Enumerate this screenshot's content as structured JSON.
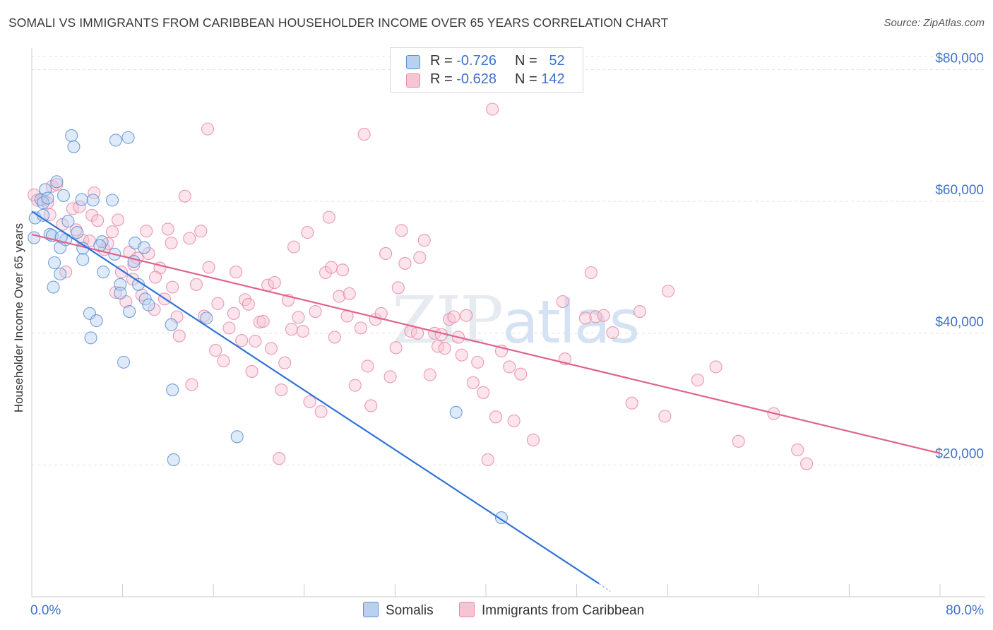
{
  "title": "SOMALI VS IMMIGRANTS FROM CARIBBEAN HOUSEHOLDER INCOME OVER 65 YEARS CORRELATION CHART",
  "source": "Source: ZipAtlas.com",
  "watermark": {
    "zip": "ZIP",
    "atlas": "atlas"
  },
  "legend_top": {
    "rows": [
      {
        "r_label": "R =",
        "r_value": "-0.726",
        "n_label": "N =",
        "n_value": "52"
      },
      {
        "r_label": "R =",
        "r_value": "-0.628",
        "n_label": "N =",
        "n_value": "142"
      }
    ]
  },
  "chart_data": {
    "type": "scatter",
    "title": "SOMALI VS IMMIGRANTS FROM CARIBBEAN HOUSEHOLDER INCOME OVER 65 YEARS CORRELATION CHART",
    "xlabel": "",
    "ylabel": "Householder Income Over 65 years",
    "xlim": [
      0,
      80
    ],
    "ylim": [
      0,
      82000
    ],
    "x_tick_labels": [
      "0.0%",
      "80.0%"
    ],
    "y_ticks": [
      20000,
      40000,
      60000,
      80000
    ],
    "y_tick_labels": [
      "$20,000",
      "$40,000",
      "$60,000",
      "$80,000"
    ],
    "grid": true,
    "series": [
      {
        "name": "Somalis",
        "color": "#5b8fd6",
        "fill": "#b9d0ef",
        "trendline": {
          "x0": 0,
          "y0": 58500,
          "x1": 50,
          "y1": 2000,
          "dashed_to": [
            51,
            800
          ]
        },
        "points": [
          [
            0.2,
            54500
          ],
          [
            0.3,
            57500
          ],
          [
            0.8,
            60300
          ],
          [
            1.0,
            59800
          ],
          [
            1.2,
            61800
          ],
          [
            1.0,
            57900
          ],
          [
            1.6,
            55000
          ],
          [
            1.8,
            54800
          ],
          [
            2.2,
            63000
          ],
          [
            2.5,
            53000
          ],
          [
            2.0,
            50700
          ],
          [
            2.5,
            49000
          ],
          [
            1.9,
            47000
          ],
          [
            2.8,
            60900
          ],
          [
            3.2,
            57000
          ],
          [
            3.0,
            54200
          ],
          [
            3.5,
            70000
          ],
          [
            3.7,
            68300
          ],
          [
            4.0,
            55300
          ],
          [
            4.5,
            51200
          ],
          [
            4.4,
            60300
          ],
          [
            4.5,
            52900
          ],
          [
            5.4,
            60200
          ],
          [
            5.1,
            43000
          ],
          [
            5.2,
            39300
          ],
          [
            5.7,
            41900
          ],
          [
            6.2,
            53900
          ],
          [
            6.3,
            49300
          ],
          [
            7.1,
            60200
          ],
          [
            7.3,
            52000
          ],
          [
            7.4,
            69300
          ],
          [
            7.8,
            47400
          ],
          [
            7.8,
            46100
          ],
          [
            8.1,
            35600
          ],
          [
            8.5,
            69700
          ],
          [
            8.6,
            43300
          ],
          [
            9.0,
            50900
          ],
          [
            9.1,
            53700
          ],
          [
            9.4,
            47400
          ],
          [
            10.0,
            45200
          ],
          [
            10.3,
            44300
          ],
          [
            12.3,
            41300
          ],
          [
            12.4,
            31400
          ],
          [
            12.5,
            20800
          ],
          [
            15.4,
            42300
          ],
          [
            18.1,
            24300
          ],
          [
            37.4,
            28000
          ],
          [
            41.4,
            12000
          ],
          [
            1.4,
            60500
          ],
          [
            2.6,
            54600
          ],
          [
            6.0,
            53300
          ],
          [
            9.9,
            53000
          ]
        ]
      },
      {
        "name": "Immigrants from Caribbean",
        "color": "#e88aa6",
        "fill": "#f6c4d3",
        "trendline": {
          "x0": 0,
          "y0": 55000,
          "x1": 80,
          "y1": 21800
        },
        "points": [
          [
            0.2,
            61000
          ],
          [
            0.5,
            60200
          ],
          [
            1.0,
            60200
          ],
          [
            1.4,
            59800
          ],
          [
            1.6,
            58000
          ],
          [
            1.8,
            62300
          ],
          [
            2.2,
            62600
          ],
          [
            2.7,
            56500
          ],
          [
            3.0,
            49300
          ],
          [
            3.6,
            58900
          ],
          [
            3.9,
            55700
          ],
          [
            4.2,
            59200
          ],
          [
            4.5,
            54100
          ],
          [
            5.1,
            54000
          ],
          [
            5.3,
            57900
          ],
          [
            5.5,
            61300
          ],
          [
            5.8,
            57100
          ],
          [
            6.4,
            52700
          ],
          [
            6.7,
            53600
          ],
          [
            7.1,
            55400
          ],
          [
            7.4,
            46200
          ],
          [
            7.6,
            57200
          ],
          [
            7.9,
            49300
          ],
          [
            8.3,
            44800
          ],
          [
            8.6,
            52300
          ],
          [
            8.9,
            48200
          ],
          [
            9.0,
            50400
          ],
          [
            9.3,
            51400
          ],
          [
            9.7,
            45800
          ],
          [
            10.1,
            55500
          ],
          [
            10.3,
            52100
          ],
          [
            10.8,
            43600
          ],
          [
            11.3,
            49900
          ],
          [
            11.7,
            45200
          ],
          [
            12.0,
            55800
          ],
          [
            12.3,
            53700
          ],
          [
            12.4,
            47000
          ],
          [
            12.8,
            42500
          ],
          [
            13.0,
            39600
          ],
          [
            13.5,
            60800
          ],
          [
            13.9,
            54400
          ],
          [
            14.1,
            32200
          ],
          [
            14.5,
            47400
          ],
          [
            14.9,
            55500
          ],
          [
            15.2,
            42600
          ],
          [
            15.6,
            50000
          ],
          [
            16.2,
            37400
          ],
          [
            15.5,
            71000
          ],
          [
            16.4,
            44500
          ],
          [
            16.9,
            35800
          ],
          [
            17.4,
            40800
          ],
          [
            17.8,
            43000
          ],
          [
            18.0,
            49300
          ],
          [
            18.5,
            38900
          ],
          [
            18.8,
            45100
          ],
          [
            19.1,
            44400
          ],
          [
            19.4,
            34200
          ],
          [
            19.7,
            38800
          ],
          [
            20.1,
            41700
          ],
          [
            20.4,
            41800
          ],
          [
            20.8,
            47300
          ],
          [
            21.1,
            37700
          ],
          [
            21.4,
            47700
          ],
          [
            21.8,
            21000
          ],
          [
            22.0,
            31400
          ],
          [
            22.3,
            35500
          ],
          [
            22.6,
            45000
          ],
          [
            22.9,
            40600
          ],
          [
            23.1,
            53100
          ],
          [
            23.5,
            42400
          ],
          [
            23.9,
            40300
          ],
          [
            24.3,
            55300
          ],
          [
            24.5,
            29600
          ],
          [
            25.0,
            43300
          ],
          [
            25.5,
            28100
          ],
          [
            25.9,
            49200
          ],
          [
            26.2,
            57600
          ],
          [
            26.4,
            50000
          ],
          [
            26.7,
            39400
          ],
          [
            27.1,
            45600
          ],
          [
            27.4,
            49600
          ],
          [
            27.8,
            42600
          ],
          [
            28.0,
            46000
          ],
          [
            28.5,
            32100
          ],
          [
            29.0,
            40800
          ],
          [
            29.3,
            70200
          ],
          [
            29.6,
            35000
          ],
          [
            29.9,
            29000
          ],
          [
            30.3,
            42100
          ],
          [
            30.8,
            43000
          ],
          [
            31.2,
            52100
          ],
          [
            31.6,
            33400
          ],
          [
            32.1,
            37800
          ],
          [
            32.3,
            46900
          ],
          [
            32.6,
            55600
          ],
          [
            32.9,
            50600
          ],
          [
            33.4,
            40300
          ],
          [
            34.2,
            51500
          ],
          [
            34.6,
            54100
          ],
          [
            35.1,
            33700
          ],
          [
            35.5,
            40000
          ],
          [
            35.8,
            38000
          ],
          [
            36.1,
            39800
          ],
          [
            36.4,
            37700
          ],
          [
            36.8,
            42100
          ],
          [
            37.2,
            42500
          ],
          [
            37.6,
            39400
          ],
          [
            37.9,
            36700
          ],
          [
            38.3,
            42700
          ],
          [
            38.9,
            32500
          ],
          [
            39.3,
            35600
          ],
          [
            39.8,
            31000
          ],
          [
            40.2,
            20800
          ],
          [
            40.6,
            74000
          ],
          [
            40.9,
            27300
          ],
          [
            41.4,
            37300
          ],
          [
            42.1,
            34900
          ],
          [
            42.5,
            26700
          ],
          [
            43.1,
            33800
          ],
          [
            44.2,
            23800
          ],
          [
            46.8,
            44800
          ],
          [
            47.0,
            36100
          ],
          [
            48.8,
            42300
          ],
          [
            49.3,
            49200
          ],
          [
            49.7,
            42500
          ],
          [
            50.4,
            42700
          ],
          [
            51.2,
            40100
          ],
          [
            52.9,
            29400
          ],
          [
            53.6,
            43300
          ],
          [
            55.8,
            27400
          ],
          [
            56.1,
            46400
          ],
          [
            58.7,
            32900
          ],
          [
            60.3,
            34900
          ],
          [
            62.3,
            23600
          ],
          [
            65.4,
            27800
          ],
          [
            67.5,
            22300
          ],
          [
            68.3,
            20200
          ],
          [
            10.9,
            48500
          ],
          [
            34.0,
            40000
          ]
        ]
      }
    ]
  },
  "bottom_legend": {
    "items": [
      "Somalis",
      "Immigrants from Caribbean"
    ]
  }
}
